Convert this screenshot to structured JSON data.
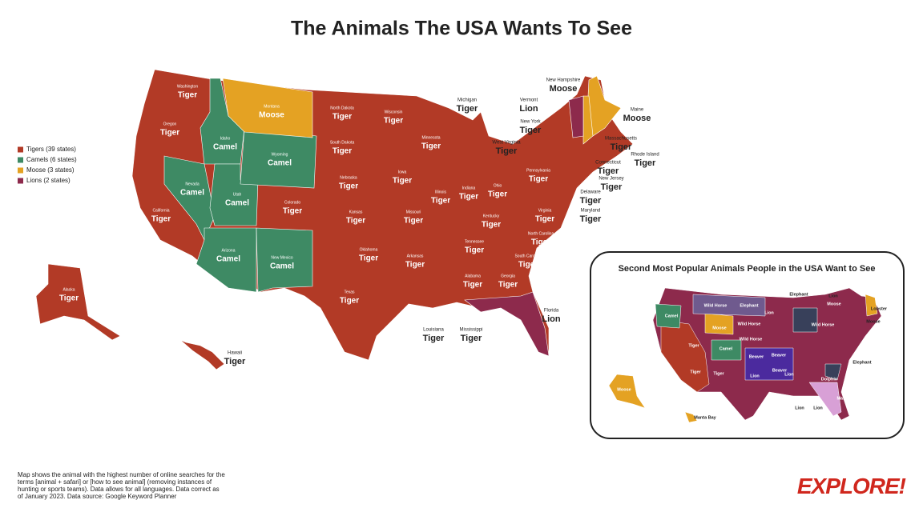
{
  "title": "The Animals The USA Wants To See",
  "legend": [
    {
      "label": "Tigers (39 states)",
      "color": "#b23a26"
    },
    {
      "label": "Camels (6 states)",
      "color": "#3e8a64"
    },
    {
      "label": "Moose (3 states)",
      "color": "#e4a223"
    },
    {
      "label": "Lions (2 states)",
      "color": "#8d2a4c"
    }
  ],
  "states": [
    {
      "name": "Washington",
      "animal": "Tiger"
    },
    {
      "name": "Oregon",
      "animal": "Tiger"
    },
    {
      "name": "California",
      "animal": "Tiger"
    },
    {
      "name": "Nevada",
      "animal": "Camel"
    },
    {
      "name": "Idaho",
      "animal": "Camel"
    },
    {
      "name": "Utah",
      "animal": "Camel"
    },
    {
      "name": "Arizona",
      "animal": "Camel"
    },
    {
      "name": "Montana",
      "animal": "Moose"
    },
    {
      "name": "Wyoming",
      "animal": "Camel"
    },
    {
      "name": "Colorado",
      "animal": "Tiger"
    },
    {
      "name": "New Mexico",
      "animal": "Camel"
    },
    {
      "name": "North Dakota",
      "animal": "Tiger"
    },
    {
      "name": "South Dakota",
      "animal": "Tiger"
    },
    {
      "name": "Nebraska",
      "animal": "Tiger"
    },
    {
      "name": "Kansas",
      "animal": "Tiger"
    },
    {
      "name": "Oklahoma",
      "animal": "Tiger"
    },
    {
      "name": "Texas",
      "animal": "Tiger"
    },
    {
      "name": "Minnesota",
      "animal": "Tiger"
    },
    {
      "name": "Iowa",
      "animal": "Tiger"
    },
    {
      "name": "Missouri",
      "animal": "Tiger"
    },
    {
      "name": "Arkansas",
      "animal": "Tiger"
    },
    {
      "name": "Louisiana",
      "animal": "Tiger"
    },
    {
      "name": "Mississippi",
      "animal": "Tiger"
    },
    {
      "name": "Wisconsin",
      "animal": "Tiger"
    },
    {
      "name": "Illinois",
      "animal": "Tiger"
    },
    {
      "name": "Indiana",
      "animal": "Tiger"
    },
    {
      "name": "Ohio",
      "animal": "Tiger"
    },
    {
      "name": "Michigan",
      "animal": "Tiger"
    },
    {
      "name": "Kentucky",
      "animal": "Tiger"
    },
    {
      "name": "Tennessee",
      "animal": "Tiger"
    },
    {
      "name": "Alabama",
      "animal": "Tiger"
    },
    {
      "name": "Georgia",
      "animal": "Tiger"
    },
    {
      "name": "Florida",
      "animal": "Lion"
    },
    {
      "name": "South Carolina",
      "animal": "Tiger"
    },
    {
      "name": "North Carolina",
      "animal": "Tiger"
    },
    {
      "name": "Virginia",
      "animal": "Tiger"
    },
    {
      "name": "West Virginia",
      "animal": "Tiger"
    },
    {
      "name": "Pennsylvania",
      "animal": "Tiger"
    },
    {
      "name": "New York",
      "animal": "Tiger"
    },
    {
      "name": "Vermont",
      "animal": "Lion"
    },
    {
      "name": "New Hampshire",
      "animal": "Moose"
    },
    {
      "name": "Maine",
      "animal": "Moose"
    },
    {
      "name": "Massachusetts",
      "animal": "Tiger"
    },
    {
      "name": "Rhode Island",
      "animal": "Tiger"
    },
    {
      "name": "Connecticut",
      "animal": "Tiger"
    },
    {
      "name": "New Jersey",
      "animal": "Tiger"
    },
    {
      "name": "Delaware",
      "animal": "Tiger"
    },
    {
      "name": "Maryland",
      "animal": "Tiger"
    },
    {
      "name": "Alaska",
      "animal": "Tiger"
    },
    {
      "name": "Hawaii",
      "animal": "Tiger"
    }
  ],
  "inset": {
    "title": "Second Most Popular Animals People in the USA Want to See",
    "labels": [
      "Wild Horse",
      "Elephant",
      "Camel",
      "Moose",
      "Wild Horse",
      "Wild Horse",
      "Tiger",
      "Camel",
      "Beaver",
      "Beaver",
      "Beaver",
      "Tiger",
      "Tiger",
      "Lion",
      "Lion",
      "Dolphin",
      "Manatees",
      "Moose",
      "Manta Bay",
      "Elephant",
      "Lion",
      "Moose",
      "Lobster",
      "Moose",
      "Elephant",
      "Lion",
      "Lion",
      "Wild Horse",
      "Lion"
    ]
  },
  "footnote": "Map shows the animal with the highest number of online searches for the terms [animal + safari] or [how to see animal] (removing instances of hunting or sports teams). Data allows for all languages. Data correct as of January 2023. Data source: Google Keyword Planner",
  "logo": "EXPLORE!"
}
